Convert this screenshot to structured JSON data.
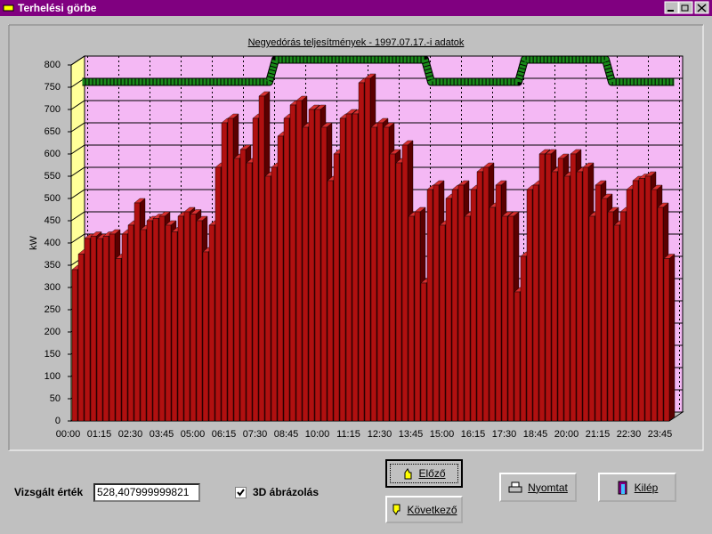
{
  "window": {
    "title": "Terhelési görbe"
  },
  "chart_data": {
    "type": "bar3d",
    "title": "Negyedórás teljesítmények - 1997.07.17.-i adatok",
    "y_label": "kW",
    "categories": [
      "00:00",
      null,
      null,
      null,
      null,
      "01:15",
      null,
      null,
      null,
      null,
      "02:30",
      null,
      null,
      null,
      null,
      "03:45",
      null,
      null,
      null,
      null,
      "05:00",
      null,
      null,
      null,
      null,
      "06:15",
      null,
      null,
      null,
      null,
      "07:30",
      null,
      null,
      null,
      null,
      "08:45",
      null,
      null,
      null,
      null,
      "10:00",
      null,
      null,
      null,
      null,
      "11:15",
      null,
      null,
      null,
      null,
      "12:30",
      null,
      null,
      null,
      null,
      "13:45",
      null,
      null,
      null,
      null,
      "15:00",
      null,
      null,
      null,
      null,
      "16:15",
      null,
      null,
      null,
      null,
      "17:30",
      null,
      null,
      null,
      null,
      "18:45",
      null,
      null,
      null,
      null,
      "20:00",
      null,
      null,
      null,
      null,
      "21:15",
      null,
      null,
      null,
      null,
      "22:30",
      null,
      null,
      null,
      null,
      "23:45"
    ],
    "values": [
      340,
      375,
      410,
      415,
      410,
      415,
      420,
      365,
      420,
      440,
      490,
      430,
      450,
      455,
      460,
      440,
      425,
      460,
      470,
      465,
      450,
      380,
      440,
      570,
      670,
      680,
      590,
      610,
      580,
      680,
      730,
      550,
      570,
      640,
      680,
      710,
      720,
      660,
      700,
      700,
      660,
      540,
      600,
      680,
      690,
      690,
      760,
      770,
      660,
      670,
      660,
      600,
      580,
      620,
      460,
      470,
      310,
      520,
      530,
      440,
      500,
      520,
      530,
      460,
      520,
      560,
      570,
      480,
      530,
      460,
      460,
      290,
      370,
      520,
      530,
      600,
      600,
      560,
      590,
      550,
      600,
      560,
      570,
      460,
      530,
      500,
      470,
      440,
      470,
      520,
      540,
      545,
      550,
      520,
      480,
      365
    ],
    "color": "#b01010",
    "line": {
      "color": "#1a8a1a",
      "values": [
        750,
        750,
        750,
        750,
        750,
        750,
        750,
        750,
        750,
        750,
        750,
        750,
        750,
        750,
        750,
        750,
        750,
        750,
        750,
        750,
        750,
        750,
        750,
        750,
        750,
        750,
        750,
        750,
        750,
        750,
        750,
        800,
        800,
        800,
        800,
        800,
        800,
        800,
        800,
        800,
        800,
        800,
        800,
        800,
        800,
        800,
        800,
        800,
        800,
        800,
        800,
        800,
        800,
        800,
        800,
        800,
        750,
        750,
        750,
        750,
        750,
        750,
        750,
        750,
        750,
        750,
        750,
        750,
        750,
        750,
        750,
        800,
        800,
        800,
        800,
        800,
        800,
        800,
        800,
        800,
        800,
        800,
        800,
        800,
        800,
        750,
        750,
        750,
        750,
        750,
        750,
        750,
        750,
        750,
        750,
        750
      ]
    },
    "ylim": [
      0,
      800
    ],
    "yticks": [
      0,
      50,
      100,
      150,
      200,
      250,
      300,
      350,
      400,
      450,
      500,
      550,
      600,
      650,
      700,
      750,
      800
    ],
    "grid": true
  },
  "controls": {
    "value_label": "Vizsgált érték",
    "value": "528,407999999821",
    "checkbox_label": "3D ábrázolás",
    "prev": "Előző",
    "next": "Következő",
    "print": "Nyomtat",
    "exit": "Kilép"
  }
}
